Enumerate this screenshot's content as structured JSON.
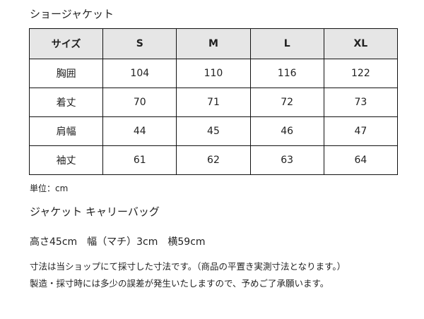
{
  "title": "ショージャケット",
  "table": {
    "headers": [
      "サイズ",
      "S",
      "M",
      "L",
      "XL"
    ],
    "rows": [
      [
        "胸囲",
        "104",
        "110",
        "116",
        "122"
      ],
      [
        "着丈",
        "70",
        "71",
        "72",
        "73"
      ],
      [
        "肩幅",
        "44",
        "45",
        "46",
        "47"
      ],
      [
        "袖丈",
        "61",
        "62",
        "63",
        "64"
      ]
    ]
  },
  "unit": "単位：cm",
  "bag": {
    "title": "ジャケット キャリーバッグ",
    "dims": "高さ45cm　幅（マチ）3cm　横59cm"
  },
  "notes": [
    "寸法は当ショップにて採寸した寸法です。（商品の平置き実測寸法となります。）",
    "製造・採寸時には多少の誤差が発生いたしますので、予めご了承願います。"
  ]
}
